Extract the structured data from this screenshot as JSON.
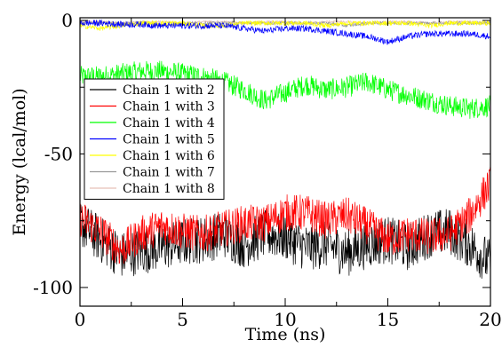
{
  "chart_data": {
    "type": "line",
    "title": "",
    "xlabel": "Time (ns)",
    "ylabel": "Energy (lcal/mol)",
    "xlim": [
      0,
      20
    ],
    "ylim": [
      -107,
      1
    ],
    "x_ticks": [
      0,
      5,
      10,
      15,
      20
    ],
    "x_tick_labels": [
      "0",
      "5",
      "10",
      "15",
      "20"
    ],
    "y_ticks": [
      -100,
      -50,
      0
    ],
    "y_tick_labels": [
      "-100",
      "-50",
      "0"
    ],
    "grid": false,
    "legend_position": "upper-left",
    "series": [
      {
        "name": "Chain 1 with 2",
        "color": "#000000",
        "x": [
          0,
          1,
          2,
          3,
          4,
          5,
          6,
          7,
          8,
          9,
          10,
          11,
          12,
          13,
          14,
          15,
          16,
          17,
          18,
          19,
          20
        ],
        "y": [
          -76,
          -82,
          -88,
          -86,
          -85,
          -83,
          -82,
          -80,
          -84,
          -80,
          -81,
          -85,
          -84,
          -87,
          -84,
          -82,
          -85,
          -80,
          -79,
          -84,
          -91
        ]
      },
      {
        "name": "Chain 1 with 3",
        "color": "#ff0000",
        "x": [
          0,
          1,
          2,
          3,
          4,
          5,
          6,
          7,
          8,
          9,
          10,
          11,
          12,
          13,
          14,
          15,
          16,
          17,
          18,
          19,
          20
        ],
        "y": [
          -74,
          -79,
          -86,
          -80,
          -77,
          -79,
          -80,
          -78,
          -76,
          -76,
          -72,
          -72,
          -75,
          -73,
          -77,
          -82,
          -80,
          -81,
          -80,
          -73,
          -61
        ]
      },
      {
        "name": "Chain 1 with 4",
        "color": "#00ff00",
        "x": [
          0,
          1,
          2,
          3,
          4,
          5,
          6,
          7,
          8,
          9,
          10,
          11,
          12,
          13,
          14,
          15,
          16,
          17,
          18,
          19,
          20
        ],
        "y": [
          -21,
          -21,
          -20,
          -19,
          -19,
          -20,
          -21,
          -23,
          -26,
          -30,
          -27,
          -24,
          -26,
          -25,
          -23,
          -26,
          -28,
          -30,
          -32,
          -33,
          -32
        ]
      },
      {
        "name": "Chain 1 with 5",
        "color": "#0000ff",
        "x": [
          0,
          1,
          2,
          3,
          4,
          5,
          6,
          7,
          8,
          9,
          10,
          11,
          12,
          13,
          14,
          15,
          16,
          17,
          18,
          19,
          20
        ],
        "y": [
          -1,
          -1,
          -1.5,
          -1.5,
          -2,
          -2,
          -2,
          -2,
          -3,
          -4,
          -3,
          -3,
          -4,
          -5,
          -6,
          -8,
          -6,
          -5,
          -5,
          -5,
          -6
        ]
      },
      {
        "name": "Chain 1 with 6",
        "color": "#ffff00",
        "x": [
          0,
          1,
          2,
          3,
          4,
          5,
          6,
          7,
          8,
          9,
          10,
          11,
          12,
          13,
          14,
          15,
          16,
          17,
          18,
          19,
          20
        ],
        "y": [
          -2,
          -3,
          -2,
          -1,
          -1,
          -1,
          -2,
          -2,
          -1,
          -1,
          -1,
          -1,
          -2,
          -1,
          -1,
          -1,
          -1,
          -2,
          -1,
          -1,
          -1
        ]
      },
      {
        "name": "Chain 1 with 7",
        "color": "#999999",
        "x": [
          0,
          1,
          2,
          3,
          4,
          5,
          6,
          7,
          8,
          9,
          10,
          11,
          12,
          13,
          14,
          15,
          16,
          17,
          18,
          19,
          20
        ],
        "y": [
          -1,
          -1,
          -1,
          -1,
          -2,
          -1,
          -1,
          -1,
          -1,
          -1,
          -1,
          -1,
          -1,
          -2,
          -1,
          -1,
          -1,
          -1,
          -1,
          -1,
          -1
        ]
      },
      {
        "name": "Chain 1 with 8",
        "color": "#e8c0b8",
        "x": [
          0,
          1,
          2,
          3,
          4,
          5,
          6,
          7,
          8,
          9,
          10,
          11,
          12,
          13,
          14,
          15,
          16,
          17,
          18,
          19,
          20
        ],
        "y": [
          -0.5,
          -0.5,
          -1,
          -0.5,
          -0.5,
          -1,
          -0.5,
          -0.5,
          -1,
          -0.5,
          -0.5,
          -1,
          -0.5,
          -0.5,
          -1,
          -0.5,
          -0.5,
          -1,
          -0.5,
          -0.5,
          -1
        ]
      }
    ]
  }
}
